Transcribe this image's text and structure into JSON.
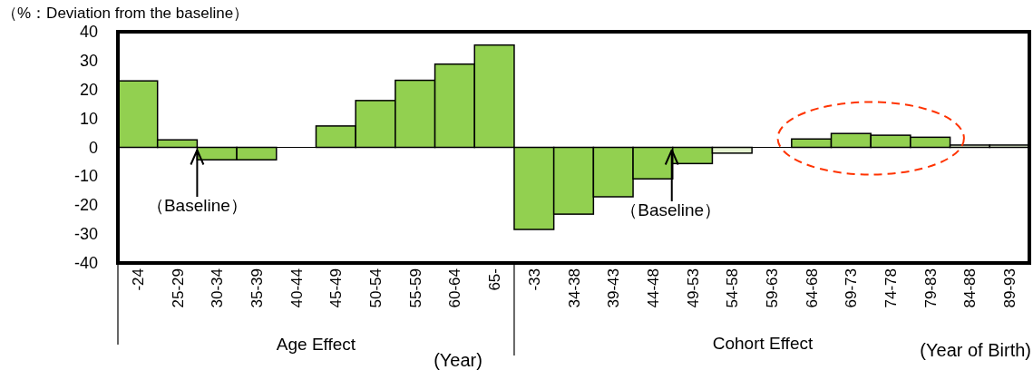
{
  "chart_data": {
    "type": "bar",
    "ylabel": "（%：Deviation from the baseline）",
    "categories": [
      "-24",
      "25-29",
      "30-34",
      "35-39",
      "40-44",
      "45-49",
      "50-54",
      "55-59",
      "60-64",
      "65-",
      "-33",
      "34-38",
      "39-43",
      "44-48",
      "49-53",
      "54-58",
      "59-63",
      "64-68",
      "69-73",
      "74-78",
      "79-83",
      "84-88",
      "89-93"
    ],
    "values": [
      23,
      2.6,
      -4.3,
      -4.3,
      0,
      7.4,
      16.2,
      23.2,
      28.8,
      35.4,
      -28.4,
      -23.1,
      -17.1,
      -10.9,
      -5.6,
      -2,
      0,
      2.9,
      4.8,
      4.2,
      3.5,
      0.8,
      0.8
    ],
    "colors": [
      "#92d050",
      "#92d050",
      "#92d050",
      "#92d050",
      "#92d050",
      "#92d050",
      "#92d050",
      "#92d050",
      "#92d050",
      "#92d050",
      "#92d050",
      "#92d050",
      "#92d050",
      "#92d050",
      "#92d050",
      "#e4f2d0",
      "#92d050",
      "#92d050",
      "#92d050",
      "#92d050",
      "#92d050",
      "#e4f2d0",
      "#e4f2d0"
    ],
    "ylim": [
      -40,
      40
    ],
    "yticks": [
      -40,
      -30,
      -20,
      -10,
      0,
      10,
      20,
      30,
      40
    ],
    "annotations": [
      {
        "text": "（Baseline）",
        "x": "25-29",
        "y": 0
      },
      {
        "text": "（Baseline）",
        "y": 0
      },
      "Age Effect",
      "Cohort Effect",
      "(Year)",
      "(Year of Birth)"
    ]
  }
}
